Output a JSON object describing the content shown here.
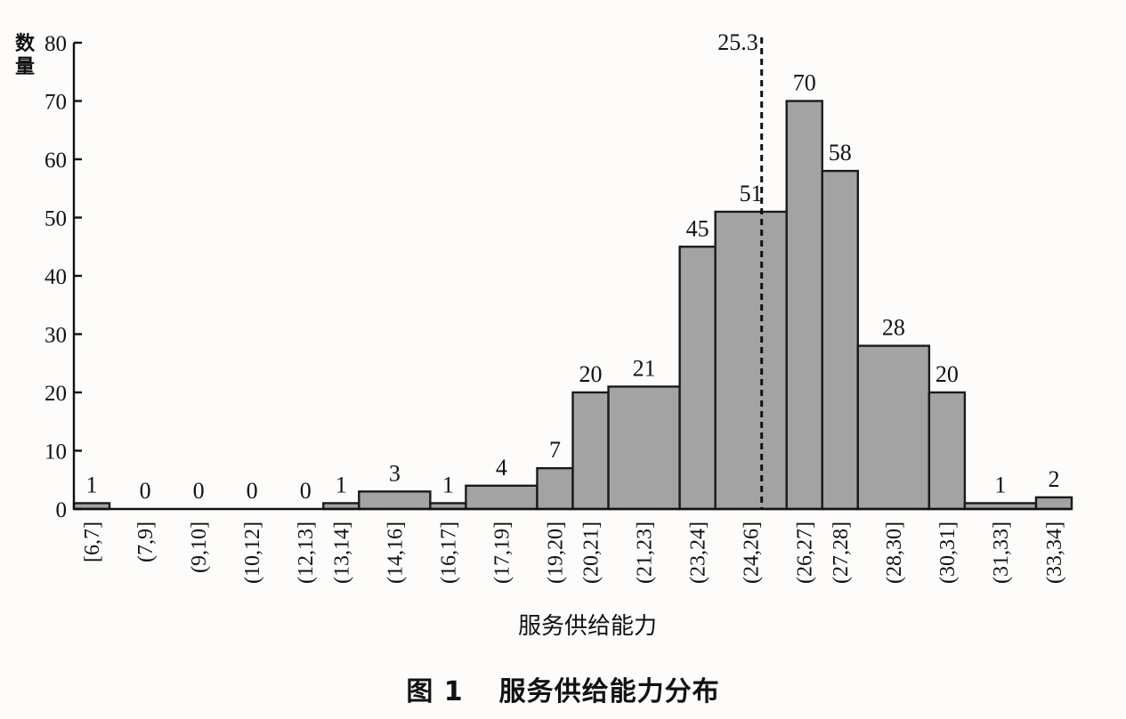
{
  "caption": {
    "figure_number": "图 1",
    "title": "服务供给能力分布"
  },
  "chart_data": {
    "type": "bar",
    "title": "",
    "xlabel": "服务供给能力",
    "ylabel": "数量",
    "ylim": [
      0,
      80
    ],
    "yticks": [
      0,
      10,
      20,
      30,
      40,
      50,
      60,
      70,
      80
    ],
    "grid": false,
    "bar_color": "#a3a3a3",
    "categories": [
      "[6,7]",
      "(7,9]",
      "(9,10]",
      "(10,12]",
      "(12,13]",
      "(13,14]",
      "(14,16]",
      "(16,17]",
      "(17,19]",
      "(19,20]",
      "(20,21]",
      "(21,23]",
      "(23,24]",
      "(24,26]",
      "(26,27]",
      "(27,28]",
      "(28,30]",
      "(30,31]",
      "(31,33]",
      "(33,34]"
    ],
    "values": [
      1,
      0,
      0,
      0,
      0,
      1,
      3,
      1,
      4,
      7,
      20,
      21,
      45,
      51,
      70,
      58,
      28,
      20,
      1,
      2
    ],
    "bin_edges": [
      6,
      7,
      9,
      10,
      12,
      13,
      14,
      16,
      17,
      19,
      20,
      21,
      23,
      24,
      26,
      27,
      28,
      30,
      31,
      33,
      34
    ],
    "reference_line": {
      "value": 25.3,
      "label": "25.3",
      "style": "dashed"
    }
  }
}
